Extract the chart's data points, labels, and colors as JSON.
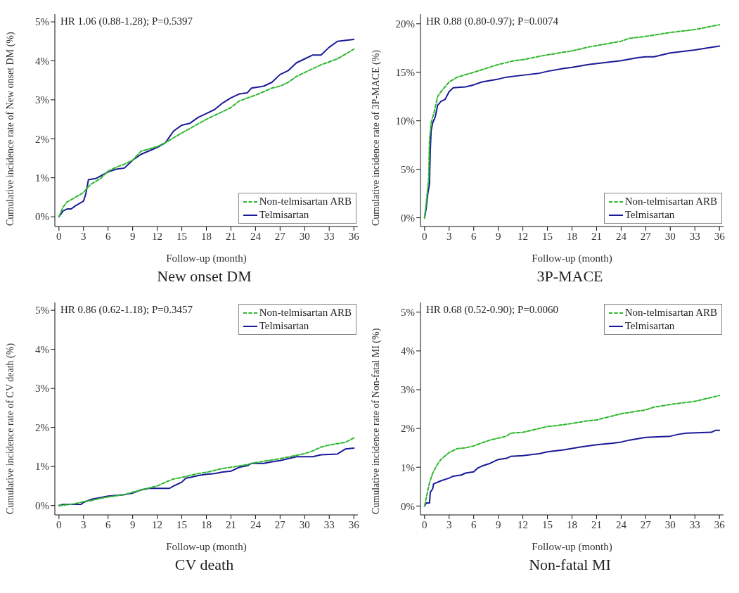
{
  "chart_data": [
    {
      "type": "line",
      "title": "New onset DM",
      "xlabel": "Follow-up (month)",
      "ylabel": "Cumulative incidence rate of New onset DM (%)",
      "annotations": [
        "HR 1.06 (0.88-1.28); P=0.5397"
      ],
      "legend": "bottom right",
      "marker": "none",
      "xlim": [
        -0.5,
        36.5
      ],
      "xticks": [
        0,
        3,
        6,
        9,
        12,
        15,
        18,
        21,
        24,
        27,
        30,
        33,
        36
      ],
      "ylim": [
        -0.25,
        5.2
      ],
      "yticks": [
        {
          "value": 0,
          "label": "0%"
        },
        {
          "value": 1,
          "label": "1%"
        },
        {
          "value": 2,
          "label": "2%"
        },
        {
          "value": 3,
          "label": "3%"
        },
        {
          "value": 4,
          "label": "4%"
        },
        {
          "value": 5,
          "label": "5%"
        }
      ],
      "series": [
        {
          "name": "Non-telmisartan ARB",
          "color": "#2eb82e",
          "line_style": "dashed",
          "x": [
            0,
            0.5,
            1,
            2,
            3,
            3.5,
            4,
            5,
            6,
            7,
            8,
            9,
            10,
            12,
            13,
            15,
            18,
            21,
            22,
            24,
            26,
            27,
            28,
            29,
            30,
            32,
            34,
            36
          ],
          "values": [
            0,
            0.25,
            0.38,
            0.5,
            0.62,
            0.75,
            0.85,
            0.97,
            1.17,
            1.27,
            1.35,
            1.45,
            1.68,
            1.8,
            1.9,
            2.15,
            2.5,
            2.8,
            2.97,
            3.12,
            3.3,
            3.35,
            3.45,
            3.6,
            3.7,
            3.9,
            4.05,
            4.3
          ]
        },
        {
          "name": "Telmisartan",
          "color": "#1a1a99",
          "line_style": "solid",
          "x": [
            0,
            0.5,
            1,
            1.5,
            2,
            3,
            3.3,
            3.6,
            4.5,
            6,
            7,
            8,
            9,
            10,
            12,
            13,
            14,
            15,
            16,
            17,
            18,
            19,
            20,
            21,
            22,
            23,
            23.5,
            25,
            26,
            27,
            28,
            29,
            30,
            31,
            32,
            33,
            34,
            36
          ],
          "values": [
            0,
            0.15,
            0.2,
            0.2,
            0.28,
            0.4,
            0.6,
            0.95,
            0.98,
            1.15,
            1.22,
            1.25,
            1.45,
            1.6,
            1.78,
            1.9,
            2.2,
            2.35,
            2.4,
            2.55,
            2.65,
            2.75,
            2.92,
            3.05,
            3.15,
            3.18,
            3.3,
            3.35,
            3.45,
            3.65,
            3.75,
            3.95,
            4.05,
            4.15,
            4.15,
            4.35,
            4.5,
            4.55
          ]
        }
      ]
    },
    {
      "type": "line",
      "title": "3P-MACE",
      "xlabel": "Follow-up (month)",
      "ylabel": "Cumulative incidence rate of 3P-MACE (%)",
      "annotations": [
        "HR 0.88 (0.80-0.97); P=0.0074"
      ],
      "legend": "bottom right",
      "marker": "none",
      "xlim": [
        -0.5,
        36.5
      ],
      "xticks": [
        0,
        3,
        6,
        9,
        12,
        15,
        18,
        21,
        24,
        27,
        30,
        33,
        36
      ],
      "ylim": [
        -0.9,
        21
      ],
      "yticks": [
        {
          "value": 0,
          "label": "0%"
        },
        {
          "value": 5,
          "label": "5%"
        },
        {
          "value": 10,
          "label": "10%"
        },
        {
          "value": 15,
          "label": "15%"
        },
        {
          "value": 20,
          "label": "20%"
        }
      ],
      "series": [
        {
          "name": "Non-telmisartan ARB",
          "color": "#2eb82e",
          "line_style": "dashed",
          "x": [
            0,
            0.2,
            0.5,
            0.6,
            0.8,
            1.2,
            1.6,
            2,
            3,
            4,
            6,
            9,
            11,
            12,
            15,
            18,
            20,
            24,
            25,
            27,
            30,
            33,
            36
          ],
          "values": [
            0,
            1.5,
            4,
            8,
            9.8,
            11,
            12.5,
            13,
            14,
            14.5,
            15,
            15.8,
            16.2,
            16.3,
            16.8,
            17.2,
            17.6,
            18.2,
            18.5,
            18.7,
            19.1,
            19.4,
            19.9
          ]
        },
        {
          "name": "Telmisartan",
          "color": "#1a1a99",
          "line_style": "solid",
          "x": [
            0,
            0.2,
            0.4,
            0.6,
            0.7,
            0.8,
            1,
            1.3,
            1.6,
            2,
            2.5,
            3,
            3.5,
            5,
            6,
            7,
            9,
            10,
            12,
            14,
            15,
            17,
            18,
            20,
            24,
            26,
            27,
            28,
            30,
            33,
            36
          ],
          "values": [
            0,
            1,
            2.5,
            3.5,
            7,
            9,
            9.8,
            10.4,
            11.6,
            12,
            12.2,
            13,
            13.4,
            13.5,
            13.7,
            14,
            14.3,
            14.5,
            14.7,
            14.9,
            15.1,
            15.4,
            15.5,
            15.8,
            16.2,
            16.5,
            16.6,
            16.6,
            17,
            17.3,
            17.7
          ]
        }
      ]
    },
    {
      "type": "line",
      "title": "CV death",
      "xlabel": "Follow-up (month)",
      "ylabel": "Cumulative incidence rate of CV death (%)",
      "annotations": [
        "HR 0.86 (0.62-1.18); P=0.3457"
      ],
      "legend": "top right",
      "marker": "none",
      "xlim": [
        -0.5,
        36.5
      ],
      "xticks": [
        0,
        3,
        6,
        9,
        12,
        15,
        18,
        21,
        24,
        27,
        30,
        33,
        36
      ],
      "ylim": [
        -0.24,
        5.2
      ],
      "yticks": [
        {
          "value": 0,
          "label": "0%"
        },
        {
          "value": 1,
          "label": "1%"
        },
        {
          "value": 2,
          "label": "2%"
        },
        {
          "value": 3,
          "label": "3%"
        },
        {
          "value": 4,
          "label": "4%"
        },
        {
          "value": 5,
          "label": "5%"
        }
      ],
      "series": [
        {
          "name": "Non-telmisartan ARB",
          "color": "#2eb82e",
          "line_style": "dashed",
          "x": [
            0,
            1,
            2,
            3,
            4,
            5,
            6,
            8,
            9,
            10,
            12,
            13,
            14,
            15,
            17,
            18,
            20,
            21,
            23,
            24,
            27,
            30,
            31,
            32,
            33,
            35,
            36
          ],
          "values": [
            0,
            0.02,
            0.05,
            0.1,
            0.13,
            0.18,
            0.22,
            0.28,
            0.34,
            0.4,
            0.5,
            0.6,
            0.68,
            0.72,
            0.82,
            0.85,
            0.95,
            0.98,
            1.05,
            1.1,
            1.2,
            1.33,
            1.4,
            1.5,
            1.55,
            1.62,
            1.73
          ]
        },
        {
          "name": "Telmisartan",
          "color": "#1a1a99",
          "line_style": "solid",
          "x": [
            0,
            0.5,
            2.7,
            3,
            3.5,
            4,
            5,
            6,
            8,
            9,
            10,
            11,
            13.5,
            14,
            15,
            15.5,
            16,
            17,
            18,
            19,
            20,
            21,
            22,
            23,
            23.5,
            25,
            26,
            27,
            28,
            29,
            31,
            32,
            34,
            35,
            36
          ],
          "values": [
            0,
            0.03,
            0.03,
            0.08,
            0.12,
            0.16,
            0.2,
            0.24,
            0.28,
            0.32,
            0.4,
            0.44,
            0.44,
            0.5,
            0.6,
            0.7,
            0.72,
            0.77,
            0.8,
            0.82,
            0.86,
            0.88,
            0.98,
            1.02,
            1.08,
            1.08,
            1.12,
            1.15,
            1.2,
            1.25,
            1.25,
            1.3,
            1.32,
            1.45,
            1.47
          ]
        }
      ]
    },
    {
      "type": "line",
      "title": "Non-fatal MI",
      "xlabel": "Follow-up (month)",
      "ylabel": "Cumulative incidence rate of Non-fatal MI (%)",
      "annotations": [
        "HR 0.68 (0.52-0.90); P=0.0060"
      ],
      "legend": "top right",
      "marker": "none",
      "xlim": [
        -0.5,
        36.5
      ],
      "xticks": [
        0,
        3,
        6,
        9,
        12,
        15,
        18,
        21,
        24,
        27,
        30,
        33,
        36
      ],
      "ylim": [
        -0.23,
        5.25
      ],
      "yticks": [
        {
          "value": 0,
          "label": "0%"
        },
        {
          "value": 1,
          "label": "1%"
        },
        {
          "value": 2,
          "label": "2%"
        },
        {
          "value": 3,
          "label": "3%"
        },
        {
          "value": 4,
          "label": "4%"
        },
        {
          "value": 5,
          "label": "5%"
        }
      ],
      "series": [
        {
          "name": "Non-telmisartan ARB",
          "color": "#2eb82e",
          "line_style": "dashed",
          "x": [
            0,
            0.3,
            0.6,
            1,
            1.5,
            2,
            3,
            4,
            5,
            6,
            7,
            8,
            9,
            10,
            10.5,
            12,
            13,
            15,
            16,
            18,
            20,
            21,
            24,
            27,
            28,
            30,
            33,
            35,
            36
          ],
          "values": [
            0,
            0.3,
            0.6,
            0.85,
            1.05,
            1.2,
            1.38,
            1.48,
            1.5,
            1.55,
            1.63,
            1.7,
            1.75,
            1.8,
            1.88,
            1.9,
            1.95,
            2.05,
            2.07,
            2.13,
            2.2,
            2.22,
            2.38,
            2.48,
            2.55,
            2.62,
            2.7,
            2.8,
            2.85
          ]
        },
        {
          "name": "Telmisartan",
          "color": "#1a1a99",
          "line_style": "solid",
          "x": [
            0,
            0.2,
            0.6,
            0.7,
            1,
            1.1,
            2,
            3,
            3.5,
            4.5,
            5,
            6,
            6.5,
            7,
            8,
            9,
            10,
            10.5,
            12,
            14,
            15,
            17,
            19,
            21,
            23,
            24,
            25,
            27,
            30,
            31,
            32,
            35,
            35.5,
            36
          ],
          "values": [
            0,
            0.08,
            0.08,
            0.35,
            0.45,
            0.57,
            0.65,
            0.72,
            0.77,
            0.8,
            0.85,
            0.88,
            0.98,
            1.03,
            1.1,
            1.2,
            1.23,
            1.28,
            1.3,
            1.35,
            1.4,
            1.45,
            1.52,
            1.58,
            1.62,
            1.65,
            1.7,
            1.77,
            1.8,
            1.85,
            1.88,
            1.9,
            1.95,
            1.95
          ]
        }
      ]
    }
  ]
}
